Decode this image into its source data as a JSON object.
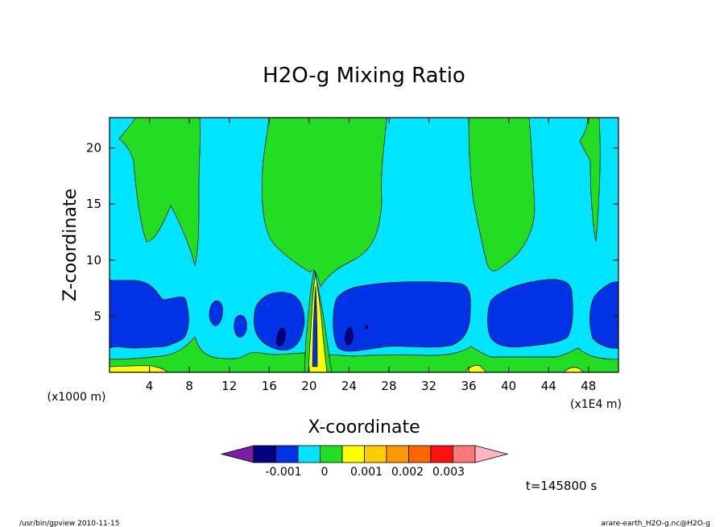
{
  "chart_data": {
    "type": "contour",
    "title": "H2O-g Mixing Ratio",
    "xlabel": "X-coordinate",
    "ylabel": "Z-coordinate",
    "x_unit_left": "(x1000 m)",
    "x_unit_right": "(x1E4 m)",
    "x_ticks": [
      "4",
      "8",
      "12",
      "16",
      "20",
      "24",
      "28",
      "32",
      "36",
      "40",
      "44",
      "48"
    ],
    "y_ticks": [
      "5",
      "10",
      "15",
      "20"
    ],
    "xlim": [
      0,
      51
    ],
    "ylim": [
      0,
      22.7
    ],
    "colorbar": {
      "colors": [
        "#7a1fa2",
        "#00007f",
        "#0033e6",
        "#00e5ff",
        "#22dd22",
        "#ffff00",
        "#ffcc00",
        "#ff9900",
        "#ff6600",
        "#ff1111",
        "#ff7777",
        "#ffb6c1"
      ],
      "labels": [
        "-0.001",
        "0",
        "0.001",
        "0.002",
        "0.003"
      ]
    },
    "time_label": "t=145800 s"
  },
  "footer": {
    "left": "/usr/bin/gpview   2010-11-15",
    "right": "arare-earth_H2O-g.nc@H2O-g"
  }
}
